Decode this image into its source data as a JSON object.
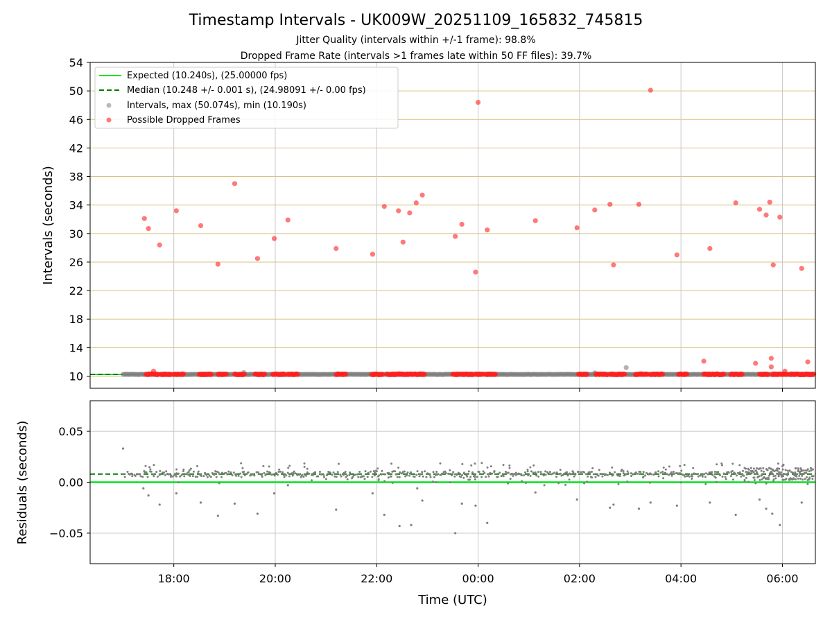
{
  "chart_data": {
    "title": "Timestamp Intervals - UK009W_20251109_165832_745815",
    "subtitle_1": "Jitter Quality (intervals within +/-1 frame): 98.8%",
    "subtitle_2": "Dropped Frame Rate (intervals >1 frames late within 50 FF files): 39.7%",
    "xlabel": "Time (UTC)",
    "x_ticks": [
      "18:00",
      "20:00",
      "22:00",
      "00:00",
      "02:00",
      "04:00",
      "06:00"
    ],
    "top": {
      "type": "scatter",
      "ylabel": "Intervals (seconds)",
      "ylim": [
        8.3,
        54
      ],
      "y_ticks": [
        10,
        14,
        18,
        22,
        26,
        30,
        34,
        38,
        42,
        46,
        50,
        54
      ],
      "expected": 10.24,
      "median": 10.248,
      "legend": [
        "Expected (10.240s), (25.00000 fps)",
        "Median (10.248 +/- 0.001 s), (24.98091 +/- 0.00 fps)",
        "Intervals, max (50.074s), min (10.190s)",
        "Possible Dropped Frames"
      ],
      "dropped_frames": [
        [
          17.42,
          32.1
        ],
        [
          17.5,
          30.7
        ],
        [
          17.6,
          10.7
        ],
        [
          17.72,
          28.4
        ],
        [
          18.05,
          33.2
        ],
        [
          18.53,
          31.1
        ],
        [
          18.87,
          25.7
        ],
        [
          19.2,
          37.0
        ],
        [
          19.65,
          26.5
        ],
        [
          19.98,
          29.3
        ],
        [
          20.25,
          31.9
        ],
        [
          21.2,
          27.9
        ],
        [
          21.92,
          27.1
        ],
        [
          22.15,
          33.8
        ],
        [
          22.43,
          33.2
        ],
        [
          22.52,
          28.8
        ],
        [
          22.65,
          32.9
        ],
        [
          22.78,
          34.3
        ],
        [
          22.9,
          35.4
        ],
        [
          23.55,
          29.6
        ],
        [
          23.68,
          31.3
        ],
        [
          23.95,
          24.6
        ],
        [
          24.0,
          48.4
        ],
        [
          24.18,
          30.5
        ],
        [
          25.13,
          31.8
        ],
        [
          25.95,
          30.8
        ],
        [
          26.3,
          33.3
        ],
        [
          26.6,
          34.1
        ],
        [
          26.67,
          25.6
        ],
        [
          27.17,
          34.1
        ],
        [
          27.4,
          50.1
        ],
        [
          27.92,
          27.0
        ],
        [
          28.45,
          12.1
        ],
        [
          28.57,
          27.9
        ],
        [
          29.08,
          34.3
        ],
        [
          29.47,
          11.8
        ],
        [
          29.55,
          33.4
        ],
        [
          29.68,
          32.6
        ],
        [
          29.75,
          34.4
        ],
        [
          29.78,
          12.5
        ],
        [
          29.78,
          11.3
        ],
        [
          29.82,
          25.6
        ],
        [
          29.95,
          32.3
        ],
        [
          30.05,
          10.7
        ],
        [
          30.38,
          25.1
        ],
        [
          30.5,
          12.0
        ]
      ],
      "dropped_clusters_at_base": [
        [
          17.45,
          17.7
        ],
        [
          17.75,
          17.95
        ],
        [
          18.0,
          18.2
        ],
        [
          18.5,
          18.75
        ],
        [
          18.87,
          19.05
        ],
        [
          19.2,
          19.4
        ],
        [
          19.6,
          19.8
        ],
        [
          19.95,
          20.2
        ],
        [
          20.25,
          20.45
        ],
        [
          21.2,
          21.4
        ],
        [
          21.9,
          22.12
        ],
        [
          22.2,
          22.95
        ],
        [
          23.5,
          23.9
        ],
        [
          23.95,
          24.1
        ],
        [
          24.15,
          24.35
        ],
        [
          25.98,
          26.15
        ],
        [
          26.32,
          26.55
        ],
        [
          26.6,
          26.9
        ],
        [
          27.1,
          27.35
        ],
        [
          27.4,
          27.65
        ],
        [
          27.95,
          28.12
        ],
        [
          28.45,
          28.85
        ],
        [
          28.98,
          29.22
        ],
        [
          29.55,
          29.72
        ],
        [
          29.8,
          30.1
        ],
        [
          30.15,
          30.62
        ]
      ],
      "gray_outliers": [
        [
          19.38,
          10.5
        ],
        [
          26.3,
          10.45
        ],
        [
          26.92,
          11.2
        ]
      ]
    },
    "bottom": {
      "type": "scatter",
      "ylabel": "Residuals (seconds)",
      "ylim": [
        -0.08,
        0.08
      ],
      "y_ticks": [
        -0.05,
        0.0,
        0.05
      ],
      "y_tick_labels": [
        "−0.05",
        "0.00",
        "0.05"
      ],
      "expected": 0.0,
      "median": 0.008,
      "outliers": [
        [
          17.0,
          0.033
        ],
        [
          17.4,
          -0.006
        ],
        [
          17.5,
          -0.013
        ],
        [
          17.72,
          -0.022
        ],
        [
          18.05,
          -0.011
        ],
        [
          18.53,
          -0.02
        ],
        [
          18.87,
          -0.033
        ],
        [
          19.2,
          -0.021
        ],
        [
          19.65,
          -0.031
        ],
        [
          19.98,
          -0.011
        ],
        [
          20.25,
          -0.003
        ],
        [
          21.2,
          -0.027
        ],
        [
          21.92,
          -0.011
        ],
        [
          22.15,
          -0.032
        ],
        [
          22.45,
          -0.043
        ],
        [
          22.68,
          -0.042
        ],
        [
          22.8,
          -0.006
        ],
        [
          22.9,
          -0.018
        ],
        [
          23.55,
          -0.05
        ],
        [
          23.68,
          -0.021
        ],
        [
          23.95,
          -0.023
        ],
        [
          24.18,
          -0.04
        ],
        [
          25.13,
          -0.01
        ],
        [
          25.95,
          -0.017
        ],
        [
          26.6,
          -0.025
        ],
        [
          26.67,
          -0.022
        ],
        [
          27.17,
          -0.026
        ],
        [
          27.4,
          -0.02
        ],
        [
          27.92,
          -0.023
        ],
        [
          28.57,
          -0.02
        ],
        [
          29.08,
          -0.032
        ],
        [
          29.55,
          -0.017
        ],
        [
          29.68,
          -0.026
        ],
        [
          29.8,
          -0.031
        ],
        [
          29.95,
          -0.042
        ],
        [
          30.38,
          -0.02
        ]
      ]
    },
    "x_range_hours": [
      16.35,
      30.65
    ],
    "colors": {
      "expected": "#00e51a",
      "median": "#007a00",
      "gray": "#7f7f7f",
      "dropped": "#ff2020",
      "hgrid": "#d8c282",
      "vgrid": "#c8c8c8"
    }
  }
}
